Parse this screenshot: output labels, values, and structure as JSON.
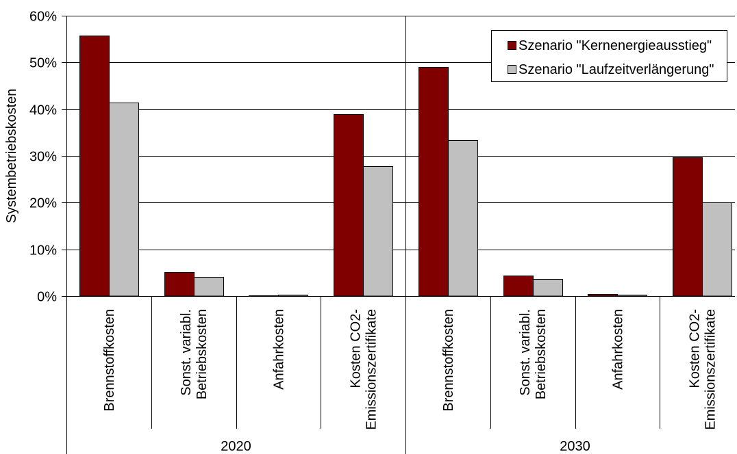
{
  "chart_data": {
    "type": "bar",
    "ylabel": "Systembetriebskosten",
    "ylim": [
      0,
      60
    ],
    "yticks": [
      0,
      10,
      20,
      30,
      40,
      50,
      60
    ],
    "ytick_labels": [
      "0%",
      "10%",
      "20%",
      "30%",
      "40%",
      "50%",
      "60%"
    ],
    "grid": true,
    "legend": {
      "position": "top-right"
    },
    "groups": [
      "2020",
      "2030"
    ],
    "categories": [
      [
        "Brennstoffkosten"
      ],
      [
        "Sonst. variabl.",
        "Betriebskosten"
      ],
      [
        "Anfahrkosten"
      ],
      [
        "Kosten CO2-",
        "Emissionszertifikate"
      ]
    ],
    "series": [
      {
        "name": "Szenario \"Kernenergieausstieg\"",
        "color": "#800000",
        "values": [
          [
            55.8,
            5.1,
            0.2,
            38.9
          ],
          [
            49.0,
            4.4,
            0.4,
            29.7
          ]
        ]
      },
      {
        "name": "Szenario \"Laufzeitverlängerung\"",
        "color": "#C0C0C0",
        "values": [
          [
            41.4,
            4.1,
            0.3,
            27.8
          ],
          [
            33.4,
            3.7,
            0.3,
            20.0
          ]
        ]
      }
    ]
  }
}
